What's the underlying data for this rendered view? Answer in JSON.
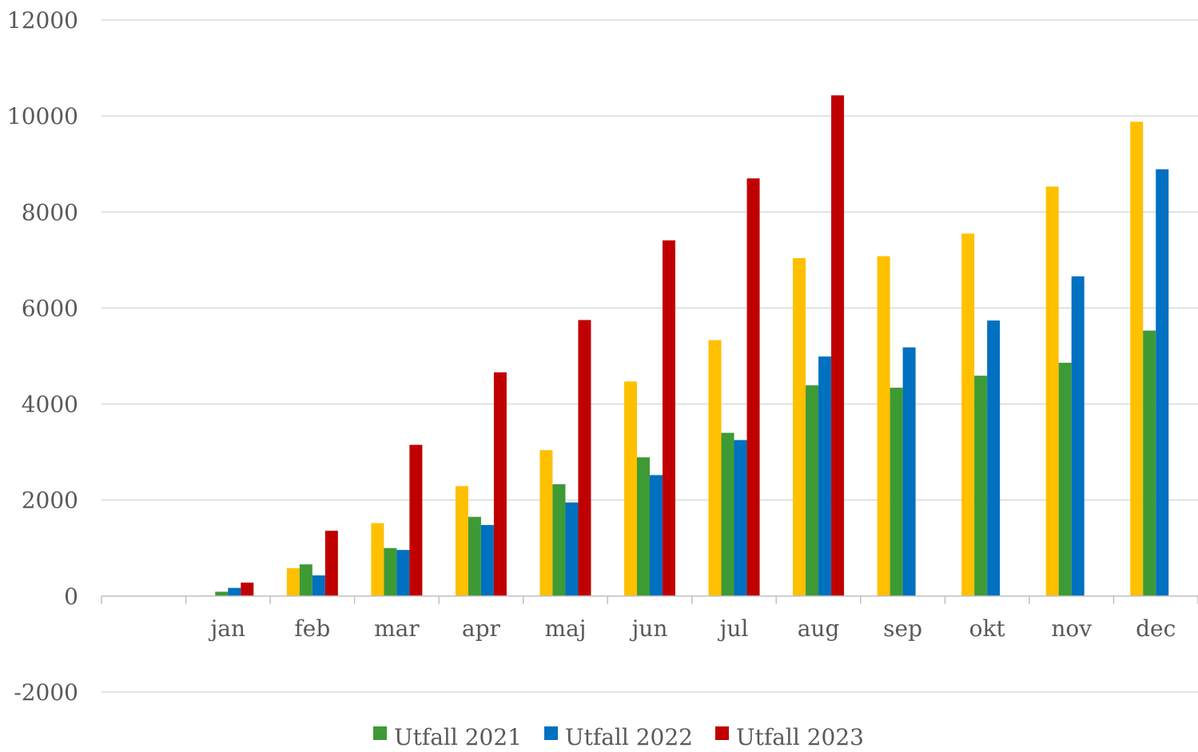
{
  "chart_data": {
    "type": "bar",
    "categories": [
      "",
      "jan",
      "feb",
      "mar",
      "apr",
      "maj",
      "jun",
      "jul",
      "aug",
      "sep",
      "okt",
      "nov",
      "dec"
    ],
    "series": [
      {
        "name": "",
        "color": "#ffc000",
        "values": [
          0,
          10,
          580,
          1520,
          2290,
          3040,
          4470,
          5330,
          7040,
          7080,
          7550,
          8530,
          9880
        ]
      },
      {
        "name": "Utfall 2021",
        "color": "#3e9a35",
        "values": [
          0,
          90,
          660,
          1000,
          1650,
          2330,
          2890,
          3400,
          4390,
          4340,
          4590,
          4860,
          5530
        ]
      },
      {
        "name": "Utfall 2022",
        "color": "#0070c0",
        "values": [
          0,
          170,
          430,
          960,
          1480,
          1950,
          2520,
          3250,
          4990,
          5180,
          5740,
          6660,
          8890
        ]
      },
      {
        "name": "Utfall 2023",
        "color": "#c00000",
        "values": [
          0,
          280,
          1360,
          3150,
          4660,
          5750,
          7410,
          8700,
          10430,
          null,
          null,
          null,
          null
        ]
      }
    ],
    "y_ticks": [
      "12000",
      "10000",
      "8000",
      "6000",
      "4000",
      "2000",
      "0",
      "-2000"
    ],
    "ylim": [
      -2000,
      12000
    ],
    "legend": {
      "position": "bottom"
    },
    "grid": true
  }
}
